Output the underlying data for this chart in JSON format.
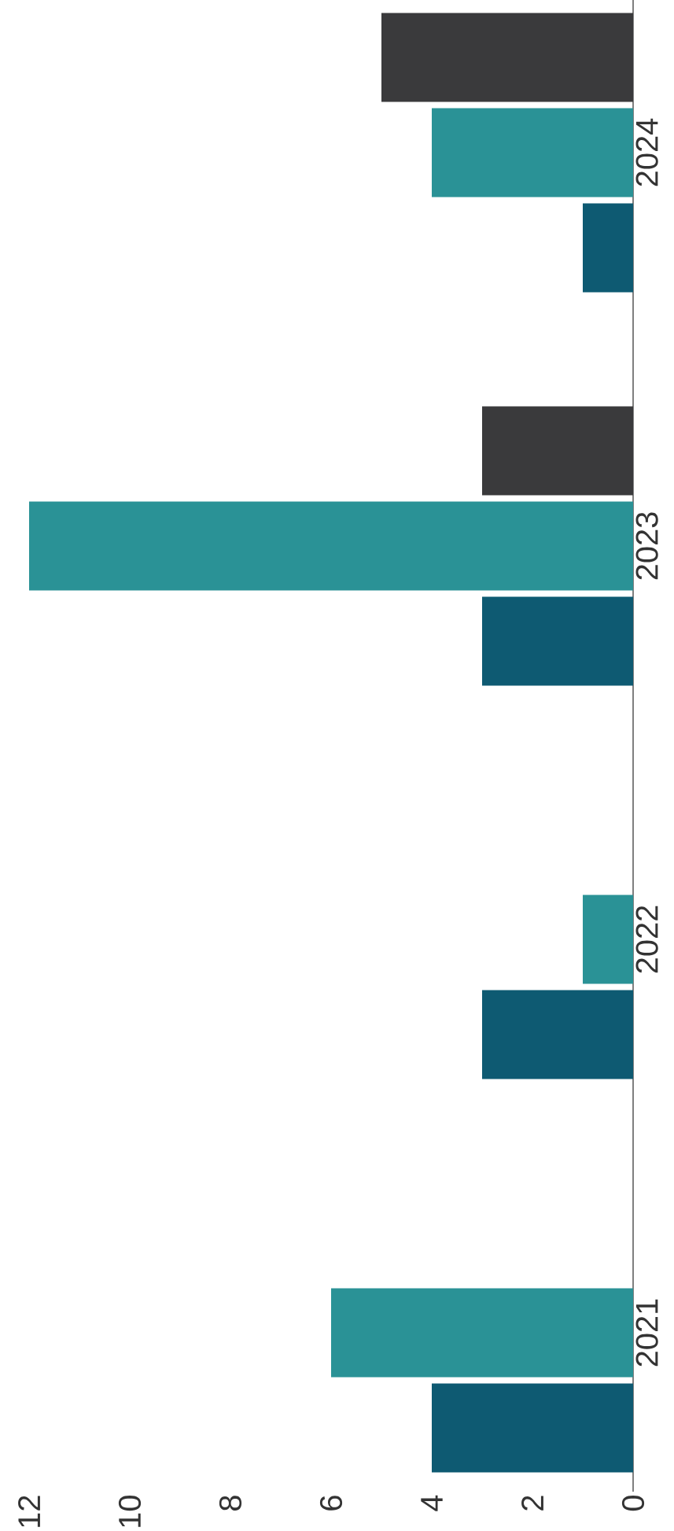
{
  "chart_data": {
    "type": "bar",
    "orientation": "horizontal",
    "categories": [
      "2024",
      "2023",
      "2022",
      "2021"
    ],
    "series": [
      {
        "color": "#0e5a72",
        "values": [
          1,
          3,
          3,
          4
        ]
      },
      {
        "color": "#2a9296",
        "values": [
          4,
          12,
          1,
          6
        ]
      },
      {
        "color": "#3a3a3c",
        "values": [
          5,
          3,
          null,
          null
        ]
      }
    ],
    "xlim": [
      12,
      0
    ],
    "xticks": [
      0,
      2,
      4,
      6,
      8,
      10,
      12
    ]
  }
}
